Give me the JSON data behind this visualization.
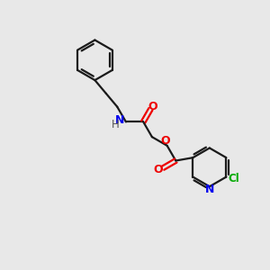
{
  "bg_color": "#e8e8e8",
  "bond_color": "#1a1a1a",
  "N_color": "#0000ee",
  "O_color": "#ee0000",
  "Cl_color": "#00aa00",
  "H_color": "#555555",
  "line_width": 1.6,
  "figsize": [
    3.0,
    3.0
  ],
  "dpi": 100,
  "xlim": [
    0,
    10
  ],
  "ylim": [
    0,
    10
  ]
}
